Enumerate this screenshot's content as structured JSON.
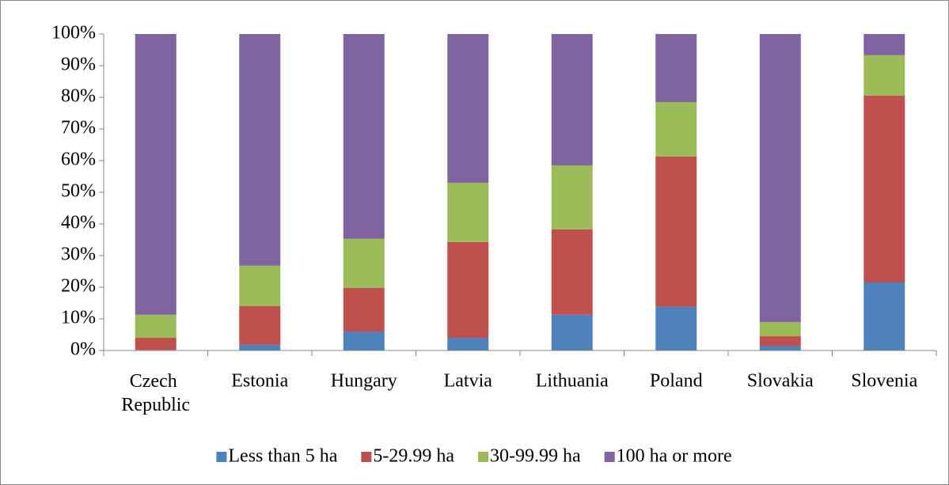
{
  "chart_data": {
    "type": "stacked_bar",
    "categories": [
      "Czech Republic",
      "Estonia",
      "Hungary",
      "Latvia",
      "Lithuania",
      "Poland",
      "Slovakia",
      "Slovenia"
    ],
    "series": [
      {
        "name": "Less than 5 ha",
        "color": "#4f81bd",
        "values": [
          0.2,
          1.8,
          6,
          4,
          11.3,
          13.8,
          1.5,
          21.5
        ]
      },
      {
        "name": "5-29.99 ha",
        "color": "#c0504d",
        "values": [
          3.8,
          12.2,
          13.8,
          30.3,
          27,
          47.5,
          3,
          59
        ]
      },
      {
        "name": "30-99.99 ha",
        "color": "#9bbb59",
        "values": [
          7.3,
          12.8,
          15.5,
          18.7,
          20.2,
          17.2,
          4.5,
          12.8
        ]
      },
      {
        "name": "100 ha or more",
        "color": "#8064a2",
        "values": [
          88.7,
          73.2,
          64.7,
          47,
          41.5,
          21.5,
          91,
          6.7
        ]
      }
    ],
    "ylim": [
      0,
      100
    ],
    "yticks": [
      {
        "value": 0,
        "label": "0%"
      },
      {
        "value": 10,
        "label": "10%"
      },
      {
        "value": 20,
        "label": "20%"
      },
      {
        "value": 30,
        "label": "30%"
      },
      {
        "value": 40,
        "label": "40%"
      },
      {
        "value": 50,
        "label": "50%"
      },
      {
        "value": 60,
        "label": "60%"
      },
      {
        "value": 70,
        "label": "70%"
      },
      {
        "value": 80,
        "label": "80%"
      },
      {
        "value": 90,
        "label": "90%"
      },
      {
        "value": 100,
        "label": "100%"
      }
    ],
    "legend": "bottom"
  }
}
